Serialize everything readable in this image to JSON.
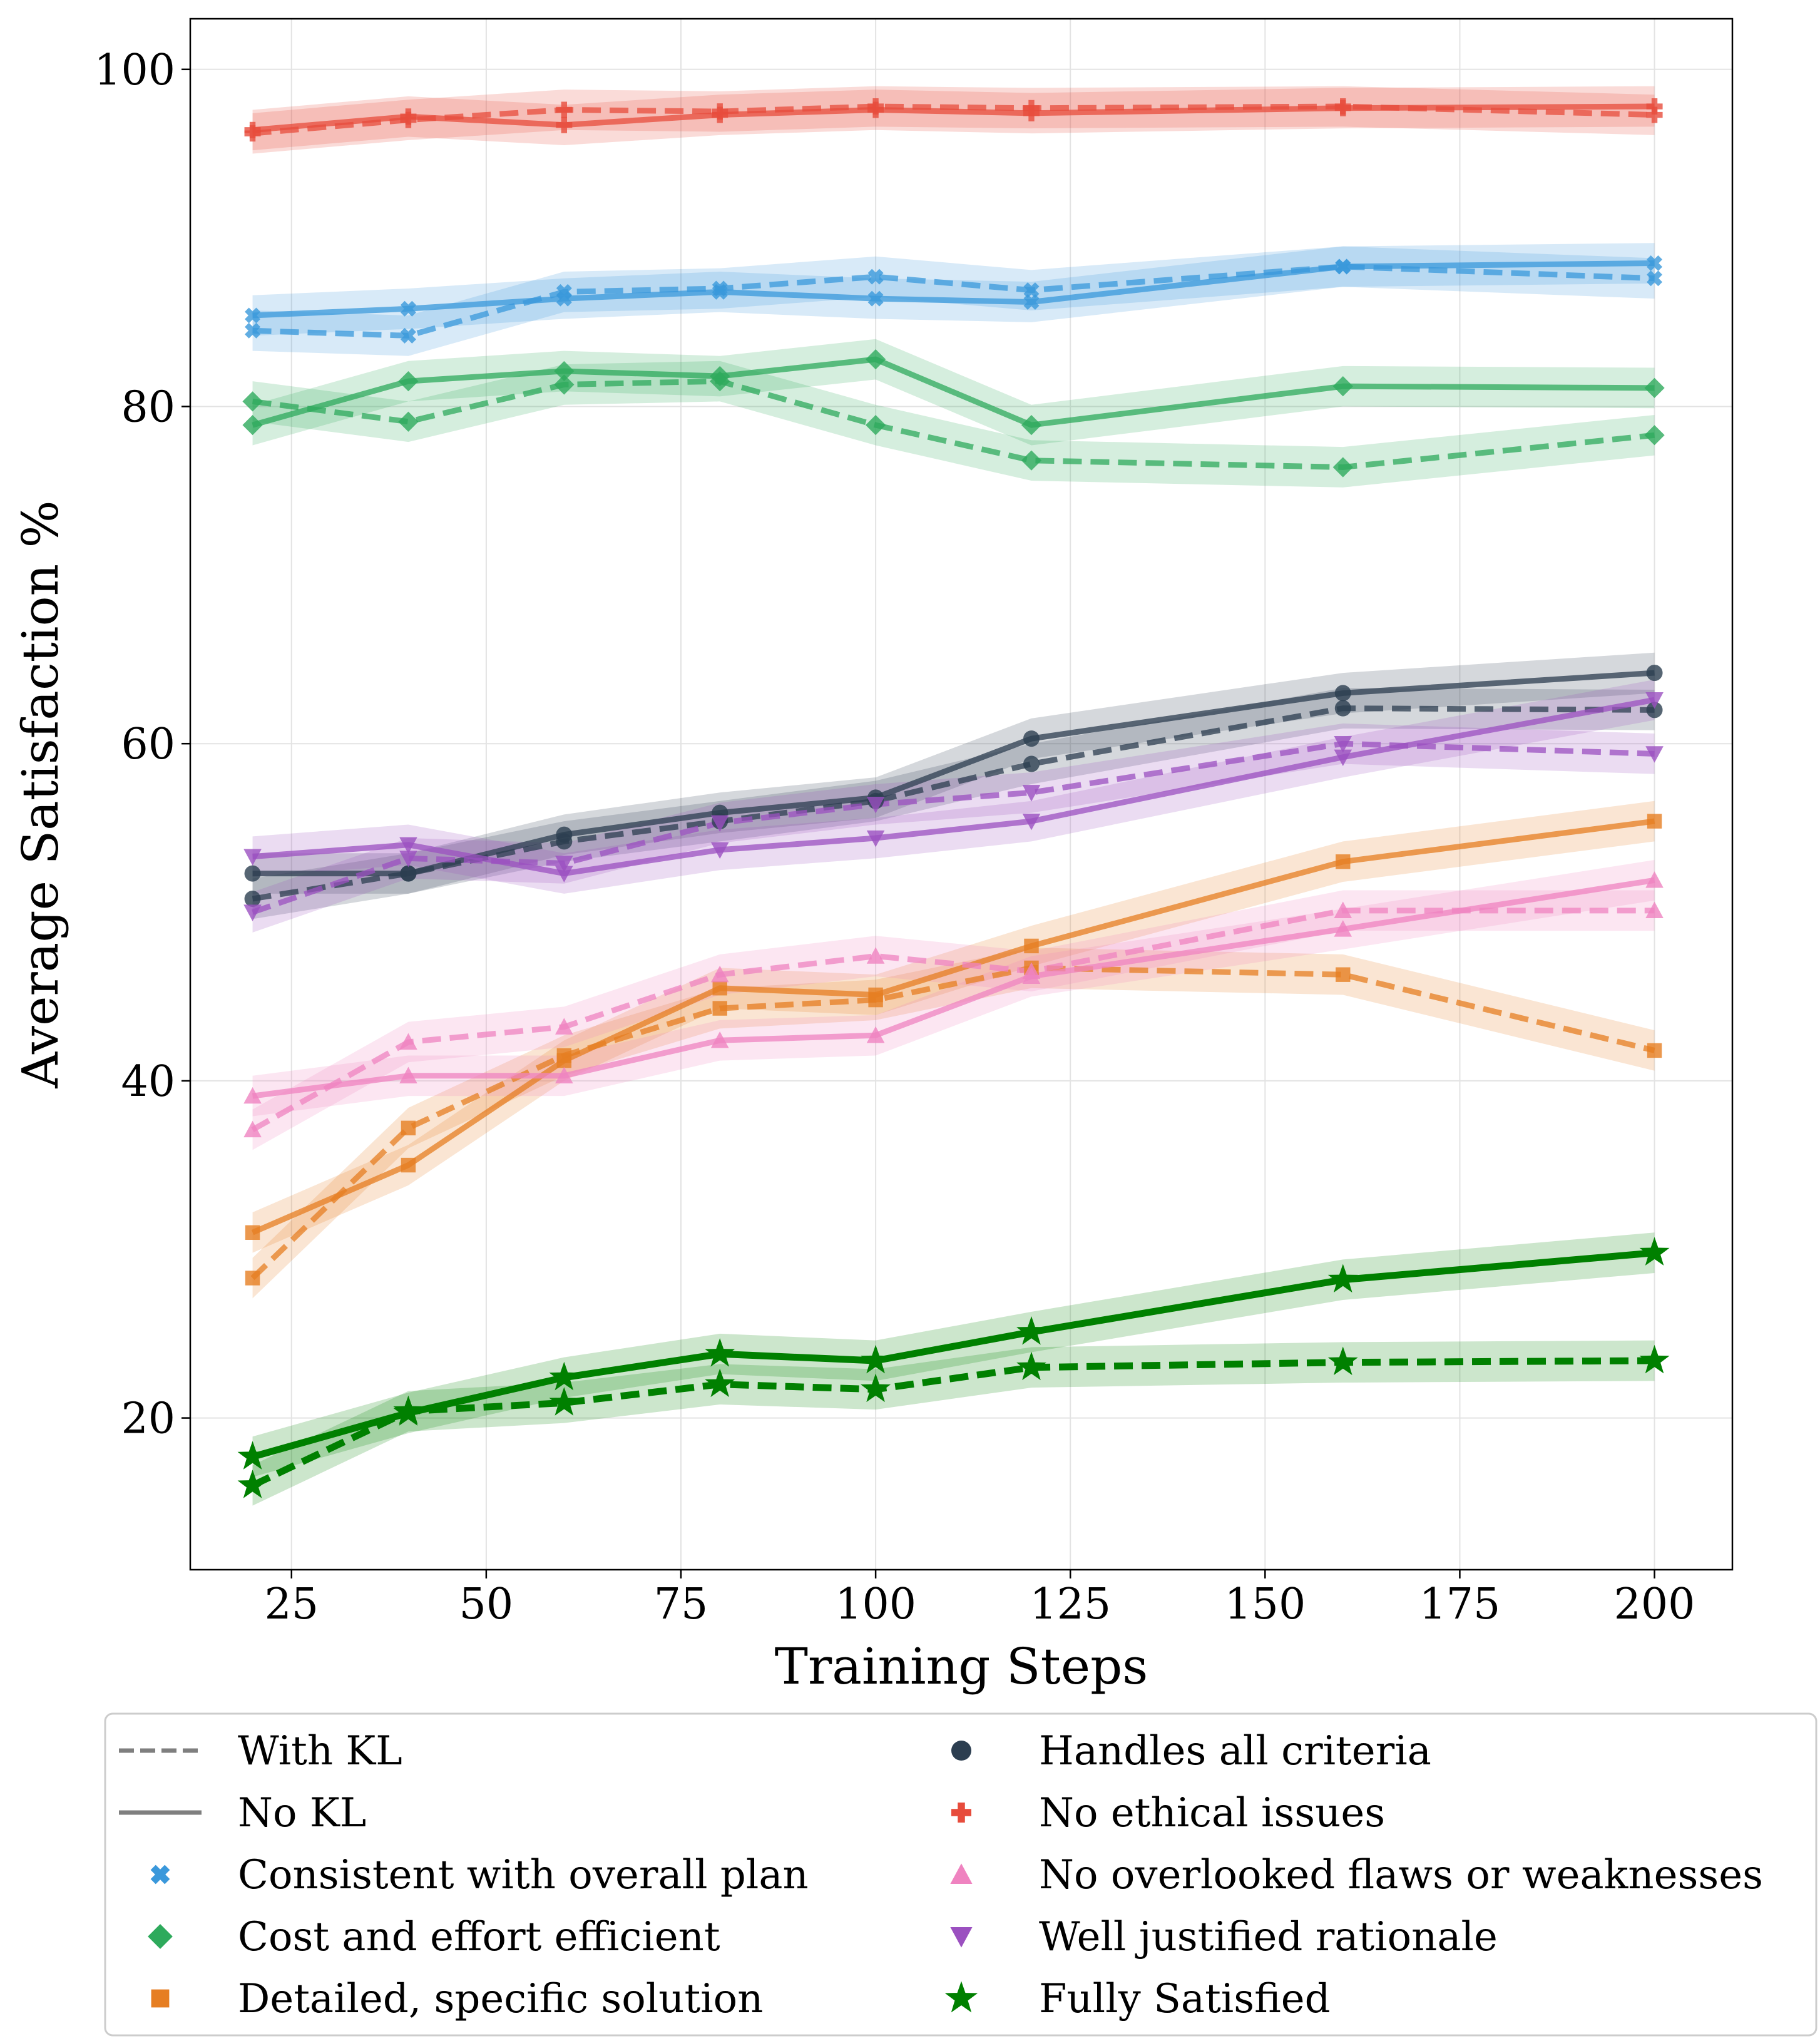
{
  "chart_data": {
    "type": "line",
    "xlabel": "Training Steps",
    "ylabel": "Average Satisfaction %",
    "xlim": [
      12,
      210
    ],
    "ylim": [
      11,
      103
    ],
    "grid": true,
    "x": [
      20,
      40,
      60,
      80,
      100,
      120,
      160,
      200
    ],
    "x_ticks": [
      25,
      50,
      75,
      100,
      125,
      150,
      175,
      200
    ],
    "y_ticks": [
      20,
      40,
      60,
      80,
      100
    ],
    "legend_position": "below",
    "styles": [
      {
        "key": "with_kl",
        "label": "With KL",
        "dash": "dashed"
      },
      {
        "key": "no_kl",
        "label": "No KL",
        "dash": "solid"
      }
    ],
    "series": [
      {
        "name": "Consistent with overall plan",
        "color": "#3a98db",
        "marker": "x",
        "with_kl": [
          84.5,
          84.2,
          86.8,
          87.0,
          87.7,
          86.9,
          88.3,
          87.6
        ],
        "no_kl": [
          85.4,
          85.8,
          86.4,
          86.8,
          86.4,
          86.2,
          88.3,
          88.5
        ]
      },
      {
        "name": "Cost and effort efficient",
        "color": "#2eaa5c",
        "marker": "diamond",
        "with_kl": [
          80.3,
          79.1,
          81.3,
          81.5,
          78.9,
          76.8,
          76.4,
          78.3
        ],
        "no_kl": [
          78.9,
          81.5,
          82.1,
          81.8,
          82.8,
          78.9,
          81.2,
          81.1
        ]
      },
      {
        "name": "Detailed, specific solution",
        "color": "#e67e22",
        "marker": "square",
        "with_kl": [
          28.3,
          37.2,
          41.5,
          44.3,
          44.8,
          46.7,
          46.3,
          41.8
        ],
        "no_kl": [
          31.0,
          35.0,
          41.2,
          45.5,
          45.1,
          48.0,
          53.0,
          55.4
        ]
      },
      {
        "name": "Handles all criteria",
        "color": "#2c3e50",
        "marker": "circle",
        "with_kl": [
          50.8,
          52.3,
          54.2,
          55.4,
          56.6,
          58.8,
          62.1,
          62.0
        ],
        "no_kl": [
          52.3,
          52.3,
          54.6,
          55.9,
          56.8,
          60.3,
          63.0,
          64.2
        ]
      },
      {
        "name": "No ethical issues",
        "color": "#e74c3c",
        "marker": "plus",
        "with_kl": [
          96.2,
          97.0,
          97.6,
          97.5,
          97.8,
          97.7,
          97.8,
          97.3
        ],
        "no_kl": [
          96.4,
          97.2,
          96.7,
          97.3,
          97.6,
          97.4,
          97.7,
          97.8
        ]
      },
      {
        "name": "No overlooked flaws or weaknesses",
        "color": "#ef83c0",
        "marker": "triangle-up",
        "with_kl": [
          37.1,
          42.3,
          43.2,
          46.3,
          47.4,
          46.5,
          50.1,
          50.1
        ],
        "no_kl": [
          39.1,
          40.3,
          40.3,
          42.4,
          42.7,
          46.2,
          49.0,
          51.9
        ]
      },
      {
        "name": "Well justified rationale",
        "color": "#9b50c0",
        "marker": "triangle-down",
        "with_kl": [
          50.0,
          53.2,
          52.9,
          55.3,
          56.4,
          57.1,
          60.0,
          59.4
        ],
        "no_kl": [
          53.3,
          54.0,
          52.3,
          53.7,
          54.4,
          55.4,
          59.2,
          62.6
        ]
      },
      {
        "name": "Fully Satisfied",
        "color": "#008000",
        "marker": "star",
        "with_kl": [
          16.0,
          20.4,
          20.9,
          22.0,
          21.7,
          23.0,
          23.3,
          23.4
        ],
        "no_kl": [
          17.7,
          20.3,
          22.4,
          23.8,
          23.4,
          25.1,
          28.2,
          29.8
        ]
      }
    ]
  }
}
